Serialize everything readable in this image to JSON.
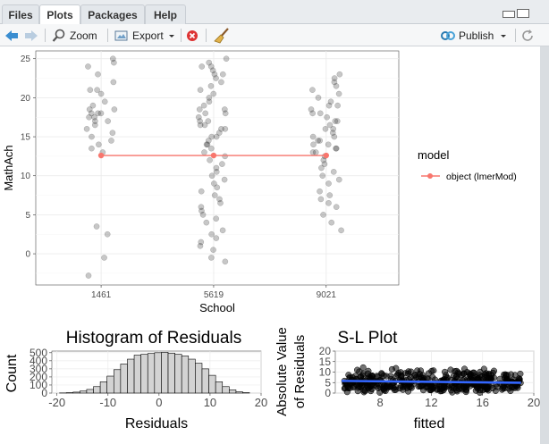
{
  "tabs": [
    {
      "label": "Files"
    },
    {
      "label": "Plots"
    },
    {
      "label": "Packages"
    },
    {
      "label": "Help"
    }
  ],
  "toolbar": {
    "zoom_label": "Zoom",
    "export_label": "Export",
    "publish_label": "Publish"
  },
  "colors": {
    "accent": "#f8766d",
    "smooth": "#3366ff",
    "publish_blue": "#2a7ab0"
  },
  "main_plot": {
    "xlabel": "School",
    "ylabel": "MathAch",
    "legend_title": "model",
    "legend_entry": "object (lmerMod)",
    "categories": [
      "1461",
      "5619",
      "9021"
    ],
    "yticks": [
      0,
      5,
      10,
      15,
      20,
      25
    ],
    "ylim": [
      -4,
      26
    ],
    "chart_data": {
      "type": "scatter",
      "xlabel": "School",
      "ylabel": "MathAch",
      "categories": [
        "1461",
        "5619",
        "9021"
      ],
      "fitted_line": {
        "name": "object (lmerMod)",
        "values": [
          12.6,
          12.6,
          12.6
        ]
      },
      "points": {
        "1461": [
          25,
          24.5,
          24,
          23,
          22,
          21,
          21,
          20.5,
          19.5,
          19,
          18.5,
          18.5,
          18,
          18,
          18,
          17.5,
          17.5,
          17,
          17,
          16.5,
          16,
          15.5,
          15,
          14.5,
          14,
          13.5,
          13,
          3.5,
          2.5,
          -0.5,
          -2.8
        ],
        "5619": [
          25,
          24.5,
          24,
          24,
          23.5,
          23,
          23,
          22.5,
          22,
          21.5,
          21,
          20.5,
          20,
          19.5,
          19,
          18.5,
          18.5,
          18,
          18,
          17.5,
          17,
          17,
          16.5,
          16.5,
          16,
          16,
          15.5,
          15,
          15,
          14.5,
          14,
          14,
          13.5,
          13,
          12.5,
          12,
          11.5,
          11,
          10.5,
          10,
          9.5,
          9,
          8.5,
          8,
          7.5,
          7,
          6.5,
          6,
          5.5,
          5,
          4.5,
          4,
          3,
          2.5,
          2,
          1.5,
          1,
          0.5,
          -0.5,
          -1
        ],
        "9021": [
          23,
          22.5,
          22,
          21.5,
          21,
          20.5,
          20,
          19.5,
          19,
          19,
          18.5,
          18,
          18,
          17.5,
          17,
          17,
          16.5,
          16,
          16,
          15.5,
          15,
          15,
          14.5,
          14.5,
          14,
          14,
          13.5,
          13.5,
          13,
          13,
          12.5,
          12,
          11.5,
          11,
          10.5,
          10,
          9.5,
          9,
          8,
          7.5,
          7,
          6.5,
          6,
          5,
          4,
          3
        ]
      }
    }
  },
  "hist_plot": {
    "title": "Histogram of Residuals",
    "xlabel": "Residuals",
    "ylabel": "Count",
    "xticks": [
      -20,
      -10,
      0,
      10,
      20
    ],
    "yticks": [
      0,
      100,
      200,
      300,
      400,
      500
    ],
    "chart_data": {
      "type": "bar",
      "title": "Histogram of Residuals",
      "xlabel": "Residuals",
      "ylabel": "Count",
      "bin_width": 1.33,
      "bin_start": -19.5,
      "values": [
        2,
        5,
        12,
        25,
        45,
        80,
        140,
        210,
        290,
        360,
        420,
        470,
        480,
        490,
        500,
        505,
        495,
        480,
        460,
        420,
        370,
        300,
        220,
        140,
        80,
        40,
        15,
        5
      ],
      "xlim": [
        -21,
        20
      ],
      "ylim": [
        0,
        520
      ]
    }
  },
  "sl_plot": {
    "title": "S-L Plot",
    "xlabel": "fitted",
    "ylabel_line1": "Absolute Value",
    "ylabel_line2": "of Residuals",
    "xticks": [
      8,
      12,
      16,
      20
    ],
    "yticks": [
      0,
      5,
      10,
      15,
      20
    ],
    "chart_data": {
      "type": "scatter",
      "title": "S-L Plot",
      "xlabel": "fitted",
      "ylabel": "Absolute Value of Residuals",
      "xlim": [
        4.5,
        20
      ],
      "ylim": [
        0,
        20
      ],
      "smooth_line": {
        "x": [
          5,
          19
        ],
        "y": [
          5.8,
          4.9
        ]
      }
    }
  }
}
